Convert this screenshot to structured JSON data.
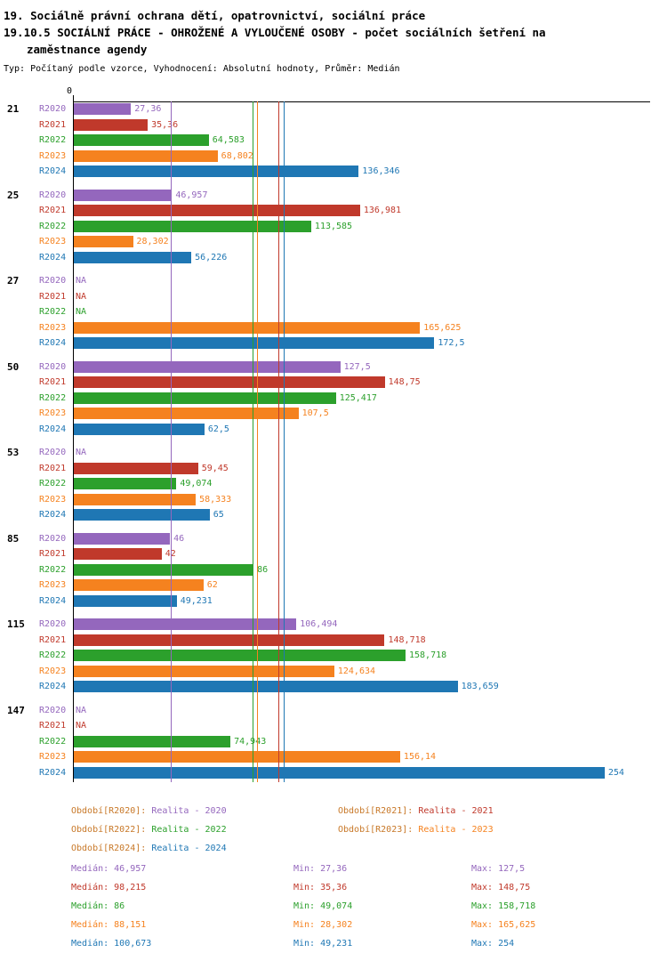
{
  "header": {
    "line1": "19. Sociálně právní ochrana dětí, opatrovnictví, sociální práce",
    "line2": "19.10.5 SOCIÁLNÍ PRÁCE - OHROŽENÉ A VYLOUČENÉ OSOBY - počet sociálních šetření na",
    "line3": "zaměstnance agendy",
    "subtitle": "Typ: Počítaný podle vzorce, Vyhodnocení: Absolutní hodnoty, Průměr: Medián"
  },
  "chart_data": {
    "type": "bar",
    "orientation": "horizontal",
    "x_axis": {
      "zero_label": "0",
      "xlim": [
        0,
        276
      ]
    },
    "grid": false,
    "median_lines": true,
    "series": [
      {
        "id": "R2020",
        "name": "Realita - 2020",
        "color": "#9467bd",
        "median": 46.957
      },
      {
        "id": "R2021",
        "name": "Realita - 2021",
        "color": "#c0392b",
        "median": 98.215
      },
      {
        "id": "R2022",
        "name": "Realita - 2022",
        "color": "#2ca02c",
        "median": 86
      },
      {
        "id": "R2023",
        "name": "Realita - 2023",
        "color": "#f5821f",
        "median": 88.151
      },
      {
        "id": "R2024",
        "name": "Realita - 2024",
        "color": "#1f77b4",
        "median": 100.673
      }
    ],
    "groups": [
      {
        "label": "21",
        "bars": [
          {
            "year": "R2020",
            "display": "27,36",
            "value": 27.36
          },
          {
            "year": "R2021",
            "display": "35,36",
            "value": 35.36
          },
          {
            "year": "R2022",
            "display": "64,583",
            "value": 64.583
          },
          {
            "year": "R2023",
            "display": "68,802",
            "value": 68.802
          },
          {
            "year": "R2024",
            "display": "136,346",
            "value": 136.346
          }
        ]
      },
      {
        "label": "25",
        "bars": [
          {
            "year": "R2020",
            "display": "46,957",
            "value": 46.957
          },
          {
            "year": "R2021",
            "display": "136,981",
            "value": 136.981
          },
          {
            "year": "R2022",
            "display": "113,585",
            "value": 113.585
          },
          {
            "year": "R2023",
            "display": "28,302",
            "value": 28.302
          },
          {
            "year": "R2024",
            "display": "56,226",
            "value": 56.226
          }
        ]
      },
      {
        "label": "27",
        "bars": [
          {
            "year": "R2020",
            "display": "NA",
            "value": null
          },
          {
            "year": "R2021",
            "display": "NA",
            "value": null
          },
          {
            "year": "R2022",
            "display": "NA",
            "value": null
          },
          {
            "year": "R2023",
            "display": "165,625",
            "value": 165.625
          },
          {
            "year": "R2024",
            "display": "172,5",
            "value": 172.5
          }
        ]
      },
      {
        "label": "50",
        "bars": [
          {
            "year": "R2020",
            "display": "127,5",
            "value": 127.5
          },
          {
            "year": "R2021",
            "display": "148,75",
            "value": 148.75
          },
          {
            "year": "R2022",
            "display": "125,417",
            "value": 125.417
          },
          {
            "year": "R2023",
            "display": "107,5",
            "value": 107.5
          },
          {
            "year": "R2024",
            "display": "62,5",
            "value": 62.5
          }
        ]
      },
      {
        "label": "53",
        "bars": [
          {
            "year": "R2020",
            "display": "NA",
            "value": null
          },
          {
            "year": "R2021",
            "display": "59,45",
            "value": 59.45
          },
          {
            "year": "R2022",
            "display": "49,074",
            "value": 49.074
          },
          {
            "year": "R2023",
            "display": "58,333",
            "value": 58.333
          },
          {
            "year": "R2024",
            "display": "65",
            "value": 65
          }
        ]
      },
      {
        "label": "85",
        "bars": [
          {
            "year": "R2020",
            "display": "46",
            "value": 46
          },
          {
            "year": "R2021",
            "display": "42",
            "value": 42
          },
          {
            "year": "R2022",
            "display": "86",
            "value": 86
          },
          {
            "year": "R2023",
            "display": "62",
            "value": 62
          },
          {
            "year": "R2024",
            "display": "49,231",
            "value": 49.231
          }
        ]
      },
      {
        "label": "115",
        "bars": [
          {
            "year": "R2020",
            "display": "106,494",
            "value": 106.494
          },
          {
            "year": "R2021",
            "display": "148,718",
            "value": 148.718
          },
          {
            "year": "R2022",
            "display": "158,718",
            "value": 158.718
          },
          {
            "year": "R2023",
            "display": "124,634",
            "value": 124.634
          },
          {
            "year": "R2024",
            "display": "183,659",
            "value": 183.659
          }
        ]
      },
      {
        "label": "147",
        "bars": [
          {
            "year": "R2020",
            "display": "NA",
            "value": null
          },
          {
            "year": "R2021",
            "display": "NA",
            "value": null
          },
          {
            "year": "R2022",
            "display": "74,943",
            "value": 74.943
          },
          {
            "year": "R2023",
            "display": "156,14",
            "value": 156.14
          },
          {
            "year": "R2024",
            "display": "254",
            "value": 254
          }
        ]
      }
    ]
  },
  "legend": {
    "label_color": "#c87828",
    "items": [
      {
        "series": "R2020",
        "label": "Období[R2020]:",
        "value": "Realita - 2020"
      },
      {
        "series": "R2021",
        "label": "Období[R2021]:",
        "value": "Realita - 2021"
      },
      {
        "series": "R2022",
        "label": "Období[R2022]:",
        "value": "Realita - 2022"
      },
      {
        "series": "R2023",
        "label": "Období[R2023]:",
        "value": "Realita - 2023"
      },
      {
        "series": "R2024",
        "label": "Období[R2024]:",
        "value": "Realita - 2024"
      }
    ]
  },
  "stats": {
    "labels": {
      "median": "Medián:",
      "min": "Min:",
      "max": "Max:"
    },
    "rows": [
      {
        "series": "R2020",
        "median": "46,957",
        "min": "27,36",
        "max": "127,5"
      },
      {
        "series": "R2021",
        "median": "98,215",
        "min": "35,36",
        "max": "148,75"
      },
      {
        "series": "R2022",
        "median": "86",
        "min": "49,074",
        "max": "158,718"
      },
      {
        "series": "R2023",
        "median": "88,151",
        "min": "28,302",
        "max": "165,625"
      },
      {
        "series": "R2024",
        "median": "100,673",
        "min": "49,231",
        "max": "254"
      }
    ]
  }
}
